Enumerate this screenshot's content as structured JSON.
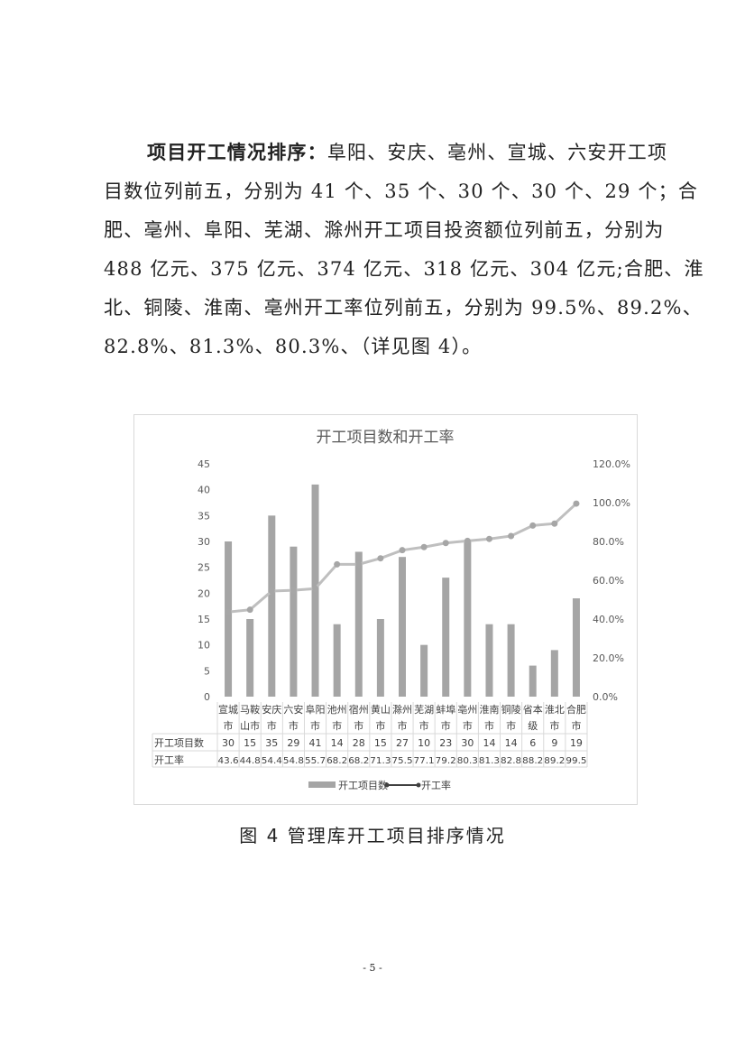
{
  "paragraph": {
    "lead": "项目开工情况排序：",
    "lines": [
      "阜阳、安庆、亳州、宣城、六安开工项",
      "目数位列前五，分别为 41 个、35 个、30 个、30 个、29 个；合",
      "肥、亳州、阜阳、芜湖、滁州开工项目投资额位列前五，分别为",
      "488 亿元、375 亿元、374 亿元、318 亿元、304 亿元;合肥、淮",
      "北、铜陵、淮南、亳州开工率位列前五，分别为 99.5%、89.2%、",
      "82.8%、81.3%、80.3%、（详见图 4）。"
    ]
  },
  "chart_data": {
    "type": "bar+line",
    "title": "开工项目数和开工率",
    "categories": [
      [
        "宣城",
        "市"
      ],
      [
        "马鞍",
        "山市"
      ],
      [
        "安庆",
        "市"
      ],
      [
        "六安",
        "市"
      ],
      [
        "阜阳",
        "市"
      ],
      [
        "池州",
        "市"
      ],
      [
        "宿州",
        "市"
      ],
      [
        "黄山",
        "市"
      ],
      [
        "滁州",
        "市"
      ],
      [
        "芜湖",
        "市"
      ],
      [
        "蚌埠",
        "市"
      ],
      [
        "亳州",
        "市"
      ],
      [
        "淮南",
        "市"
      ],
      [
        "铜陵",
        "市"
      ],
      [
        "省本",
        "级"
      ],
      [
        "淮北",
        "市"
      ],
      [
        "合肥",
        "市"
      ]
    ],
    "series": [
      {
        "name": "开工项目数",
        "type": "bar",
        "axis": "left",
        "values": [
          30,
          15,
          35,
          29,
          41,
          14,
          28,
          15,
          27,
          10,
          23,
          30,
          14,
          14,
          6,
          9,
          19
        ]
      },
      {
        "name": "开工率",
        "type": "line",
        "axis": "right",
        "values": [
          43.6,
          44.8,
          54.4,
          54.8,
          55.7,
          68.2,
          68.2,
          71.3,
          75.5,
          77.1,
          79.2,
          80.3,
          81.3,
          82.8,
          88.2,
          89.2,
          99.5
        ]
      }
    ],
    "left_axis": {
      "range": [
        0,
        45
      ],
      "ticks": [
        "0",
        "5",
        "10",
        "15",
        "20",
        "25",
        "30",
        "35",
        "40",
        "45"
      ]
    },
    "right_axis": {
      "range": [
        0,
        120
      ],
      "ticks": [
        "0.0%",
        "20.0%",
        "40.0%",
        "60.0%",
        "80.0%",
        "100.0%",
        "120.0%"
      ]
    },
    "data_table_row_labels": [
      "开工项目数",
      "开工率"
    ],
    "legend_position": "bottom",
    "grid": false,
    "colors": {
      "bar": "#a5a5a5",
      "line": "#bfbfbf",
      "marker": "#a6a6a6"
    }
  },
  "caption": "图 4  管理库开工项目排序情况",
  "page_number": "- 5 -"
}
